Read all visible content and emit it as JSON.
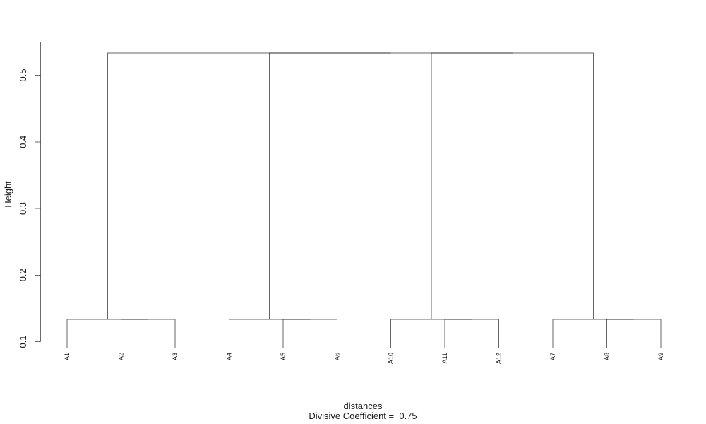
{
  "chart_data": {
    "type": "dendrogram",
    "title": "",
    "ylabel": "Height",
    "xlabel": "distances",
    "subtitle": "Divisive Coefficient =  0.75",
    "divisive_coefficient": 0.75,
    "yticks": [
      "0.1",
      "0.2",
      "0.3",
      "0.4",
      "0.5"
    ],
    "ylim": [
      0.1,
      0.55
    ],
    "grid": false,
    "leaf_order": [
      "A1",
      "A2",
      "A3",
      "A4",
      "A5",
      "A6",
      "A10",
      "A11",
      "A12",
      "A7",
      "A8",
      "A9"
    ],
    "merges": [
      {
        "a": "A2",
        "b": "A3",
        "height": 0.1333
      },
      {
        "a": "A1",
        "b": "#0",
        "height": 0.1333
      },
      {
        "a": "A5",
        "b": "A6",
        "height": 0.1333
      },
      {
        "a": "A4",
        "b": "#2",
        "height": 0.1333
      },
      {
        "a": "A11",
        "b": "A12",
        "height": 0.1333
      },
      {
        "a": "A10",
        "b": "#4",
        "height": 0.1333
      },
      {
        "a": "A8",
        "b": "A9",
        "height": 0.1333
      },
      {
        "a": "A7",
        "b": "#6",
        "height": 0.1333
      },
      {
        "a": "#5",
        "b": "#7",
        "height": 0.5333
      },
      {
        "a": "#3",
        "b": "#8",
        "height": 0.5333
      },
      {
        "a": "#1",
        "b": "#9",
        "height": 0.5333
      }
    ],
    "line_color": "#000000"
  }
}
